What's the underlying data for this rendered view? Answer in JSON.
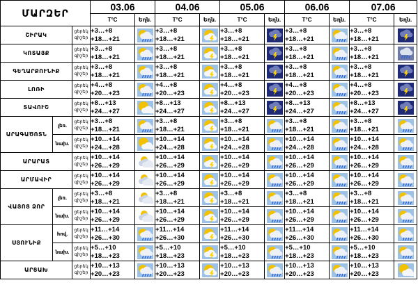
{
  "header": {
    "region_title": "ՄԱՐԶԵՐ",
    "temp_label": "T°C",
    "weather_label": "Եղն.",
    "dates": [
      "03.06",
      "04.06",
      "05.06",
      "06.06",
      "07.06"
    ]
  },
  "time_labels": [
    "ցերեկ",
    "գիշեր"
  ],
  "rows": [
    {
      "region": "ՇԻՐԱԿ",
      "zone": "",
      "days": [
        {
          "night": "+3…+8",
          "day": "+18…+21",
          "icon": "sun-cloud-rain-icon"
        },
        {
          "night": "+3…+8",
          "day": "+18…+21",
          "icon": "sun-cloud-thunder-icon"
        },
        {
          "night": "+3…+8",
          "day": "+18…+21",
          "icon": "storm-cloud-icon"
        },
        {
          "night": "+3…+8",
          "day": "+18…+21",
          "icon": "sun-cloud-rain-icon"
        },
        {
          "night": "+3…+8",
          "day": "+18…+21",
          "icon": "storm-cloud-icon"
        }
      ]
    },
    {
      "region": "ԿՈՏԱՅՔ",
      "zone": "",
      "days": [
        {
          "night": "+3…+8",
          "day": "+18…+21",
          "icon": "sun-cloud-rain-icon"
        },
        {
          "night": "+3…+8",
          "day": "+18…+21",
          "icon": "sun-cloud-thunder-icon"
        },
        {
          "night": "+3…+8",
          "day": "+18…+21",
          "icon": "storm-cloud-icon"
        },
        {
          "night": "+3…+8",
          "day": "+18…+21",
          "icon": "sun-cloud-rain-icon"
        },
        {
          "night": "+3…+8",
          "day": "+18…+21",
          "icon": "rain-cloud-icon"
        }
      ]
    },
    {
      "region": "ԳԵՂԱՐՔՈՒՆԻՔ",
      "zone": "",
      "days": [
        {
          "night": "+3…+8",
          "day": "+18…+21",
          "icon": "sun-cloud-rain-icon"
        },
        {
          "night": "+3…+8",
          "day": "+18…+21",
          "icon": "sun-cloud-thunder-icon"
        },
        {
          "night": "+3…+8",
          "day": "+18…+21",
          "icon": "storm-cloud-icon"
        },
        {
          "night": "+3…+8",
          "day": "+18…+21",
          "icon": "sun-cloud-rain-icon"
        },
        {
          "night": "+3…+8",
          "day": "+18…+21",
          "icon": "storm-cloud-icon"
        }
      ]
    },
    {
      "region": "ԼՈՌԻ",
      "zone": "",
      "days": [
        {
          "night": "+4…+8",
          "day": "+20…+23",
          "icon": "sun-cloud-rain-icon"
        },
        {
          "night": "+4…+8",
          "day": "+20…+23",
          "icon": "sun-cloud-thunder-icon"
        },
        {
          "night": "+4…+8",
          "day": "+20…+23",
          "icon": "storm-cloud-icon"
        },
        {
          "night": "+4…+8",
          "day": "+20…+23",
          "icon": "sun-cloud-rain-icon"
        },
        {
          "night": "+4…+8",
          "day": "+20…+23",
          "icon": "storm-cloud-icon"
        }
      ]
    },
    {
      "region": "ՏԱՎՈՒՇ",
      "zone": "",
      "days": [
        {
          "night": "+8…+13",
          "day": "+24…+27",
          "icon": "sun-cloud-icon"
        },
        {
          "night": "+8…+13",
          "day": "+24…+27",
          "icon": "sun-cloud-thunder-icon"
        },
        {
          "night": "+8…+13",
          "day": "+24…+27",
          "icon": "storm-cloud-icon"
        },
        {
          "night": "+8…+13",
          "day": "+24…+27",
          "icon": "sun-cloud-rain-icon"
        },
        {
          "night": "+8…+13",
          "day": "+24…+27",
          "icon": "storm-cloud-icon"
        }
      ]
    },
    {
      "region": "ԱՐԱԳԱԾՈՏՆ",
      "zone": "լեռ.",
      "days": [
        {
          "night": "+3…+8",
          "day": "+18…+21",
          "icon": "sun-cloud-rain-icon"
        },
        {
          "night": "+3…+8",
          "day": "+18…+21",
          "icon": "sun-cloud-thunder-icon"
        },
        {
          "night": "+3…+8",
          "day": "+18…+21",
          "icon": "sun-cloud-rain-icon"
        },
        {
          "night": "+3…+8",
          "day": "+18…+21",
          "icon": "sun-cloud-rain-icon"
        },
        {
          "night": "+3…+8",
          "day": "+18…+21",
          "icon": "sun-cloud-rain-icon"
        }
      ]
    },
    {
      "region": "",
      "zone": "նախ.",
      "days": [
        {
          "night": "+10…+14",
          "day": "+24…+28",
          "icon": "sun-cloud-icon"
        },
        {
          "night": "+10…+14",
          "day": "+24…+28",
          "icon": "sun-cloud-thunder-icon"
        },
        {
          "night": "+10…+14",
          "day": "+24…+28",
          "icon": "sun-cloud-rain-icon"
        },
        {
          "night": "+10…+14",
          "day": "+24…+28",
          "icon": "sun-cloud-rain-icon"
        },
        {
          "night": "+10…+14",
          "day": "+24…+28",
          "icon": "sun-cloud-rain-icon"
        }
      ]
    },
    {
      "region": "ԱՐԱՐԱՏ",
      "zone": "",
      "days": [
        {
          "night": "+10…+14",
          "day": "+26…+29",
          "icon": "cloudy-sun-icon"
        },
        {
          "night": "+10…+14",
          "day": "+26…+29",
          "icon": "sun-cloud-thunder-icon"
        },
        {
          "night": "+10…+14",
          "day": "+26…+29",
          "icon": "sun-cloud-rain-icon"
        },
        {
          "night": "+10…+14",
          "day": "+26…+29",
          "icon": "sun-cloud-rain-icon"
        },
        {
          "night": "+10…+14",
          "day": "+26…+29",
          "icon": "sun-cloud-rain-icon"
        }
      ]
    },
    {
      "region": "ԱՐՄԱՎԻՐ",
      "zone": "",
      "days": [
        {
          "night": "+10…+14",
          "day": "+26…+29",
          "icon": "cloudy-sun-icon"
        },
        {
          "night": "+10…+14",
          "day": "+26…+29",
          "icon": "sun-cloud-thunder-icon"
        },
        {
          "night": "+10…+14",
          "day": "+26…+29",
          "icon": "sun-cloud-rain-icon"
        },
        {
          "night": "+10…+14",
          "day": "+26…+29",
          "icon": "sun-cloud-rain-icon"
        },
        {
          "night": "+10…+14",
          "day": "+26…+29",
          "icon": "sun-cloud-rain-icon"
        }
      ]
    },
    {
      "region": "ՎԱՅՈՑ ՁՈՐ",
      "zone": "լեռ.",
      "days": [
        {
          "night": "+3…+8",
          "day": "+18…+21",
          "icon": "cloudy-sun-icon"
        },
        {
          "night": "+3…+8",
          "day": "+18…+21",
          "icon": "sun-cloud-thunder-icon"
        },
        {
          "night": "+3…+8",
          "day": "+18…+21",
          "icon": "sun-cloud-rain-icon"
        },
        {
          "night": "+3…+8",
          "day": "+18…+21",
          "icon": "sun-cloud-rain-icon"
        },
        {
          "night": "+3…+8",
          "day": "+18…+21",
          "icon": "sun-cloud-rain-icon"
        }
      ]
    },
    {
      "region": "",
      "zone": "նախ.",
      "days": [
        {
          "night": "+10…+14",
          "day": "+26…+29",
          "icon": "cloudy-sun-icon"
        },
        {
          "night": "+10…+14",
          "day": "+26…+29",
          "icon": "sun-cloud-thunder-icon"
        },
        {
          "night": "+10…+14",
          "day": "+26…+29",
          "icon": "sun-cloud-rain-icon"
        },
        {
          "night": "+10…+14",
          "day": "+26…+29",
          "icon": "sun-cloud-rain-icon"
        },
        {
          "night": "+10…+14",
          "day": "+26…+29",
          "icon": "sun-cloud-rain-icon"
        }
      ]
    },
    {
      "region": "ՍՅՈՒՆԻՔ",
      "zone": "հով.",
      "days": [
        {
          "night": "+11…+14",
          "day": "+26…+30",
          "icon": "sun-cloud-rain-icon"
        },
        {
          "night": "+11…+14",
          "day": "+26…+30",
          "icon": "sun-cloud-thunder-icon"
        },
        {
          "night": "+11…+14",
          "day": "+26…+30",
          "icon": "sun-cloud-rain-icon"
        },
        {
          "night": "+11…+14",
          "day": "+26…+30",
          "icon": "sun-cloud-rain-icon"
        },
        {
          "night": "+11…+14",
          "day": "+26…+30",
          "icon": "sun-cloud-rain-icon"
        }
      ]
    },
    {
      "region": "",
      "zone": "նախ.",
      "days": [
        {
          "night": "+5…+10",
          "day": "+18…+23",
          "icon": "sun-cloud-rain-icon"
        },
        {
          "night": "+5…+10",
          "day": "+18…+23",
          "icon": "sun-cloud-thunder-icon"
        },
        {
          "night": "+5…+10",
          "day": "+18…+23",
          "icon": "sun-cloud-rain-icon"
        },
        {
          "night": "+5…+10",
          "day": "+18…+23",
          "icon": "sun-cloud-rain-icon"
        },
        {
          "night": "+5…+10",
          "day": "+18…+23",
          "icon": "sun-cloud-rain-icon"
        }
      ]
    },
    {
      "region": "ԱՐՑԱԽ",
      "zone": "",
      "days": [
        {
          "night": "+10…+13",
          "day": "+20…+23",
          "icon": "sun-cloud-rain-icon"
        },
        {
          "night": "+10…+13",
          "day": "+20…+23",
          "icon": "sun-cloud-thunder-icon"
        },
        {
          "night": "+10…+13",
          "day": "+20…+23",
          "icon": "sun-cloud-rain-icon"
        },
        {
          "night": "+10…+13",
          "day": "+20…+23",
          "icon": "sun-cloud-rain-icon"
        },
        {
          "night": "+10…+13",
          "day": "+20…+23",
          "icon": "sun-cloud-icon"
        }
      ]
    }
  ],
  "colors": {
    "sky": "#9ec2e6",
    "sun": "#f2c200",
    "storm": "#1e2a78",
    "lightning": "#ffd400",
    "rain": "#2a5fd8"
  }
}
